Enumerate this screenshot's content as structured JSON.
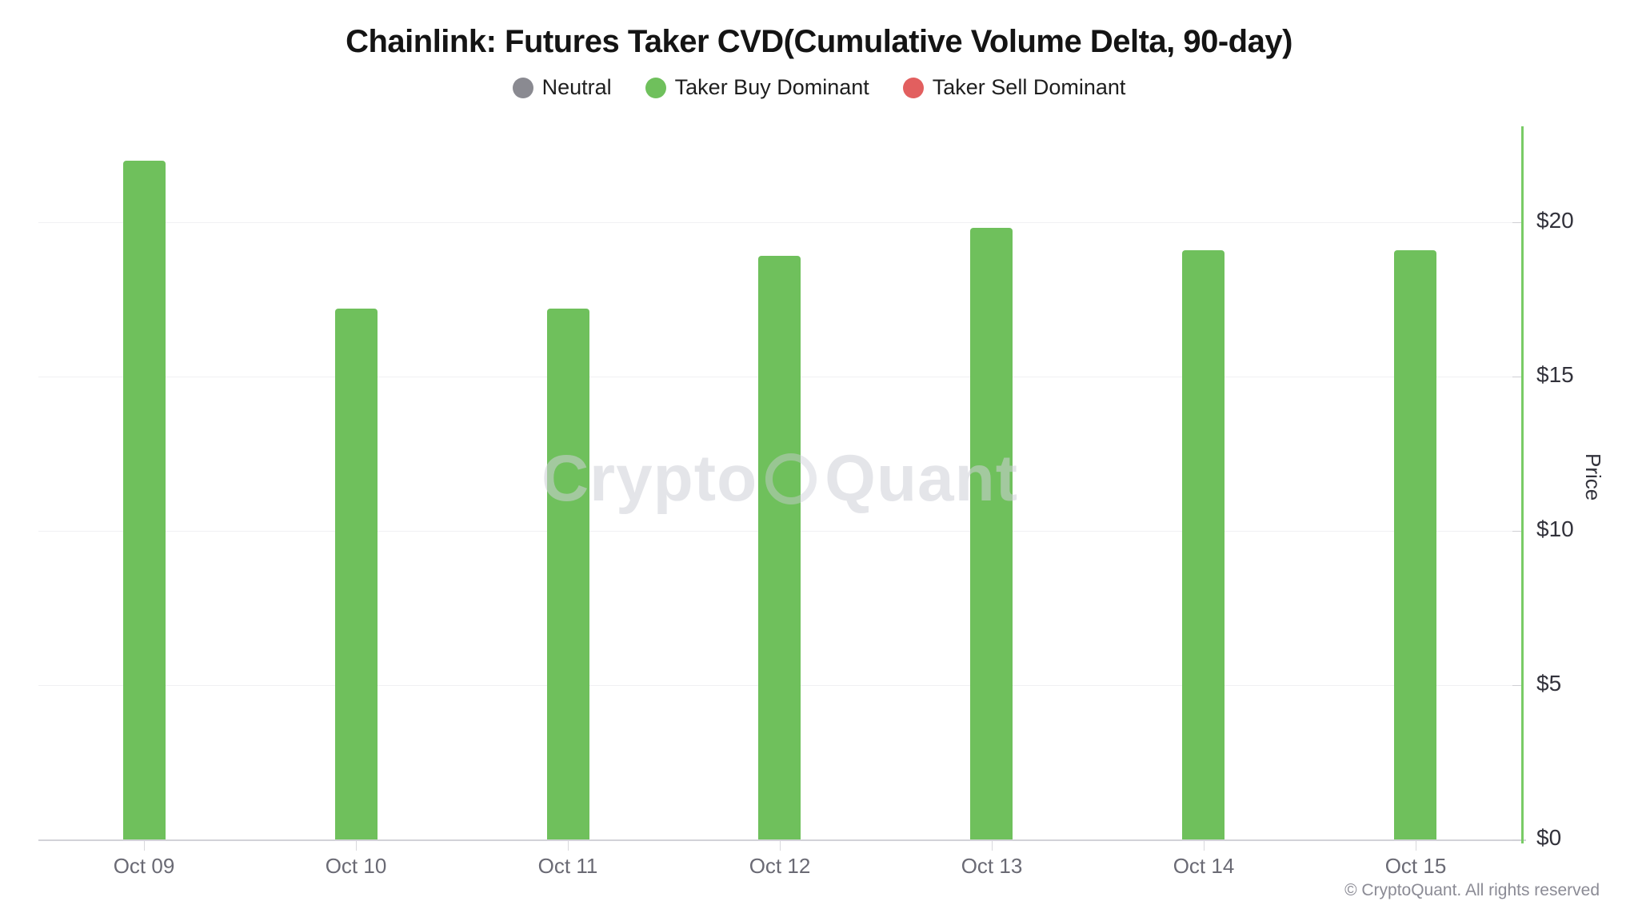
{
  "chart_data": {
    "type": "bar",
    "title": "Chainlink: Futures Taker CVD(Cumulative Volume Delta, 90-day)",
    "categories": [
      "Oct 09",
      "Oct 10",
      "Oct 11",
      "Oct 12",
      "Oct 13",
      "Oct 14",
      "Oct 15"
    ],
    "series": [
      {
        "name": "Taker Buy Dominant",
        "values": [
          22.0,
          17.2,
          17.2,
          18.9,
          19.8,
          19.1,
          19.1
        ]
      }
    ],
    "xlabel": "",
    "ylabel": "Price",
    "y_ticks": [
      {
        "value": 0,
        "label": "$0"
      },
      {
        "value": 5,
        "label": "$5"
      },
      {
        "value": 10,
        "label": "$10"
      },
      {
        "value": 15,
        "label": "$15"
      },
      {
        "value": 20,
        "label": "$20"
      }
    ],
    "ylim": [
      0,
      23.05
    ],
    "grid": true,
    "legend_position": "top",
    "legend": [
      {
        "label": "Neutral",
        "color": "#8a8a91"
      },
      {
        "label": "Taker Buy Dominant",
        "color": "#6fc05c"
      },
      {
        "label": "Taker Sell Dominant",
        "color": "#e25f5f"
      }
    ],
    "bar_color": "#6fc05c",
    "axis_line_color": "#79cb66"
  },
  "watermark": {
    "part1": "Crypto",
    "part2": "Quant"
  },
  "footer": {
    "copyright": "© CryptoQuant. All rights reserved"
  }
}
